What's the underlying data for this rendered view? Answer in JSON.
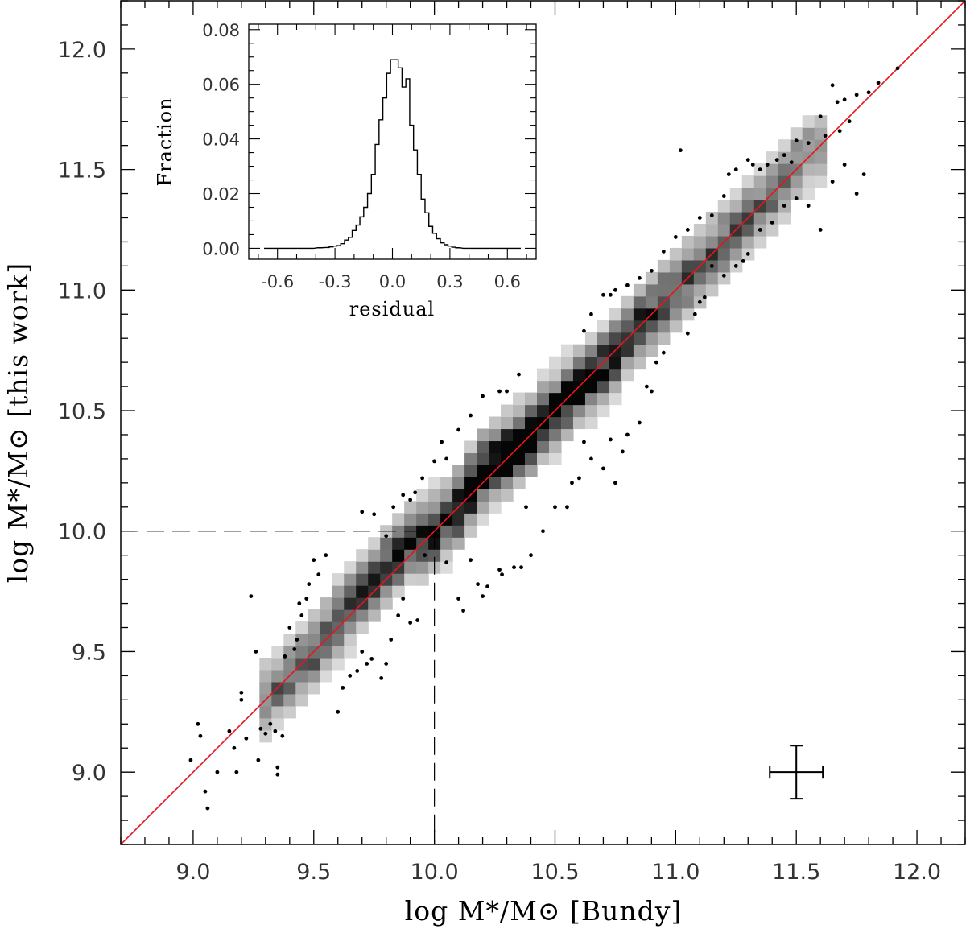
{
  "chart_data": [
    {
      "id": "main",
      "type": "scatter",
      "title": "",
      "xlabel": "log M*/M⊙ [Bundy]",
      "ylabel": "log M*/M⊙ [this work]",
      "xlim": [
        8.7,
        12.2
      ],
      "ylim": [
        8.7,
        12.2
      ],
      "x_ticks": [
        "9.0",
        "9.5",
        "10.0",
        "10.5",
        "11.0",
        "11.5",
        "12.0"
      ],
      "y_ticks": [
        "9.0",
        "9.5",
        "10.0",
        "10.5",
        "11.0",
        "11.5",
        "12.0"
      ],
      "grid": false,
      "one_to_one_line": {
        "from": [
          8.7,
          8.7
        ],
        "to": [
          12.2,
          12.2
        ]
      },
      "reference_lines": {
        "x": 10.0,
        "y": 10.0,
        "style": "dashed"
      },
      "density_histogram": {
        "description": "2D density of galaxies, grey-scale (darker = more)",
        "bin_size": 0.05,
        "ridge": [
          [
            9.3,
            9.3
          ],
          [
            9.5,
            9.5
          ],
          [
            9.7,
            9.75
          ],
          [
            9.9,
            9.95
          ],
          [
            10.0,
            10.0
          ],
          [
            10.1,
            10.1
          ],
          [
            10.2,
            10.25
          ],
          [
            10.3,
            10.32
          ],
          [
            10.4,
            10.4
          ],
          [
            10.5,
            10.5
          ],
          [
            10.6,
            10.6
          ],
          [
            10.7,
            10.68
          ],
          [
            10.8,
            10.8
          ],
          [
            10.9,
            10.9
          ],
          [
            11.0,
            11.0
          ],
          [
            11.1,
            11.1
          ],
          [
            11.2,
            11.2
          ],
          [
            11.3,
            11.3
          ],
          [
            11.4,
            11.4
          ],
          [
            11.5,
            11.52
          ],
          [
            11.6,
            11.62
          ]
        ],
        "scatter_dex": 0.09
      },
      "outlier_points": [
        [
          8.99,
          9.05
        ],
        [
          9.02,
          9.2
        ],
        [
          9.03,
          9.15
        ],
        [
          9.05,
          8.92
        ],
        [
          9.06,
          8.85
        ],
        [
          9.1,
          9.0
        ],
        [
          9.15,
          9.17
        ],
        [
          9.17,
          9.1
        ],
        [
          9.18,
          9.0
        ],
        [
          9.2,
          9.3
        ],
        [
          9.2,
          9.33
        ],
        [
          9.22,
          9.14
        ],
        [
          9.24,
          9.73
        ],
        [
          9.26,
          9.5
        ],
        [
          9.27,
          9.05
        ],
        [
          9.28,
          9.18
        ],
        [
          9.3,
          9.16
        ],
        [
          9.32,
          9.2
        ],
        [
          9.34,
          9.17
        ],
        [
          9.35,
          9.02
        ],
        [
          9.35,
          8.99
        ],
        [
          9.37,
          9.15
        ],
        [
          9.38,
          9.48
        ],
        [
          9.4,
          9.6
        ],
        [
          9.42,
          9.51
        ],
        [
          9.43,
          9.55
        ],
        [
          9.44,
          9.7
        ],
        [
          9.45,
          9.65
        ],
        [
          9.47,
          9.72
        ],
        [
          9.48,
          9.78
        ],
        [
          9.5,
          9.88
        ],
        [
          9.52,
          9.82
        ],
        [
          9.55,
          9.9
        ],
        [
          9.6,
          9.25
        ],
        [
          9.62,
          9.35
        ],
        [
          9.65,
          9.4
        ],
        [
          9.68,
          9.42
        ],
        [
          9.7,
          9.5
        ],
        [
          9.72,
          9.45
        ],
        [
          9.74,
          9.47
        ],
        [
          9.78,
          9.39
        ],
        [
          9.8,
          9.45
        ],
        [
          9.82,
          9.55
        ],
        [
          9.85,
          9.65
        ],
        [
          9.87,
          9.72
        ],
        [
          9.9,
          9.62
        ],
        [
          9.93,
          9.63
        ],
        [
          9.96,
          9.9
        ],
        [
          9.7,
          10.08
        ],
        [
          9.75,
          10.07
        ],
        [
          9.8,
          9.98
        ],
        [
          9.83,
          10.1
        ],
        [
          9.87,
          10.15
        ],
        [
          9.9,
          10.13
        ],
        [
          9.92,
          10.16
        ],
        [
          9.95,
          10.22
        ],
        [
          10.0,
          10.29
        ],
        [
          10.03,
          10.37
        ],
        [
          10.05,
          10.3
        ],
        [
          10.1,
          10.42
        ],
        [
          10.15,
          10.48
        ],
        [
          10.2,
          10.56
        ],
        [
          10.27,
          10.58
        ],
        [
          10.3,
          10.58
        ],
        [
          10.35,
          10.65
        ],
        [
          10.05,
          9.87
        ],
        [
          10.1,
          9.72
        ],
        [
          10.12,
          9.67
        ],
        [
          10.15,
          9.88
        ],
        [
          10.18,
          9.78
        ],
        [
          10.2,
          9.73
        ],
        [
          10.22,
          9.77
        ],
        [
          10.27,
          9.84
        ],
        [
          10.28,
          9.82
        ],
        [
          10.33,
          9.85
        ],
        [
          10.36,
          9.85
        ],
        [
          10.38,
          10.1
        ],
        [
          10.4,
          9.9
        ],
        [
          10.45,
          10.0
        ],
        [
          10.5,
          10.1
        ],
        [
          10.55,
          10.1
        ],
        [
          10.57,
          10.2
        ],
        [
          10.6,
          10.22
        ],
        [
          10.62,
          10.37
        ],
        [
          10.65,
          10.3
        ],
        [
          10.7,
          10.26
        ],
        [
          10.73,
          10.38
        ],
        [
          10.75,
          10.2
        ],
        [
          10.78,
          10.33
        ],
        [
          10.8,
          10.4
        ],
        [
          10.85,
          10.45
        ],
        [
          10.88,
          10.6
        ],
        [
          10.9,
          10.58
        ],
        [
          10.92,
          10.7
        ],
        [
          10.95,
          10.74
        ],
        [
          10.62,
          10.83
        ],
        [
          10.65,
          10.9
        ],
        [
          10.7,
          10.98
        ],
        [
          10.73,
          10.98
        ],
        [
          10.75,
          11.0
        ],
        [
          10.8,
          11.02
        ],
        [
          10.85,
          11.05
        ],
        [
          10.9,
          11.08
        ],
        [
          10.95,
          11.16
        ],
        [
          11.0,
          11.22
        ],
        [
          11.02,
          11.58
        ],
        [
          11.05,
          11.25
        ],
        [
          11.1,
          11.3
        ],
        [
          11.15,
          11.31
        ],
        [
          11.2,
          11.39
        ],
        [
          11.22,
          11.48
        ],
        [
          11.25,
          11.5
        ],
        [
          11.3,
          11.54
        ],
        [
          11.32,
          11.52
        ],
        [
          11.35,
          11.5
        ],
        [
          11.38,
          11.52
        ],
        [
          11.42,
          11.54
        ],
        [
          11.45,
          11.56
        ],
        [
          11.48,
          11.53
        ],
        [
          11.5,
          11.62
        ],
        [
          11.55,
          11.61
        ],
        [
          11.6,
          11.72
        ],
        [
          11.62,
          11.64
        ],
        [
          11.65,
          11.85
        ],
        [
          11.67,
          11.78
        ],
        [
          11.7,
          11.79
        ],
        [
          11.75,
          11.81
        ],
        [
          11.8,
          11.82
        ],
        [
          11.84,
          11.86
        ],
        [
          11.92,
          11.92
        ],
        [
          11.05,
          10.82
        ],
        [
          11.08,
          10.9
        ],
        [
          11.1,
          10.95
        ],
        [
          11.12,
          10.97
        ],
        [
          11.15,
          11.1
        ],
        [
          11.2,
          11.06
        ],
        [
          11.25,
          11.1
        ],
        [
          11.28,
          11.12
        ],
        [
          11.3,
          11.15
        ],
        [
          11.35,
          11.25
        ],
        [
          11.4,
          11.28
        ],
        [
          11.45,
          11.35
        ],
        [
          11.5,
          11.38
        ],
        [
          11.55,
          11.35
        ],
        [
          11.6,
          11.25
        ],
        [
          11.65,
          11.45
        ],
        [
          11.7,
          11.52
        ],
        [
          11.75,
          11.4
        ],
        [
          11.78,
          11.48
        ],
        [
          11.72,
          11.7
        ],
        [
          11.68,
          11.66
        ]
      ],
      "error_bar": {
        "x": 11.5,
        "y": 9.0,
        "x_error": 0.11,
        "y_error": 0.11
      }
    },
    {
      "id": "inset",
      "type": "histogram",
      "title": "",
      "xlabel": "residual",
      "ylabel": "Fraction",
      "xlim": [
        -0.75,
        0.75
      ],
      "ylim": [
        -0.004,
        0.082
      ],
      "x_ticks": [
        "-0.6",
        "-0.3",
        "0.0",
        "0.3",
        "0.6"
      ],
      "y_ticks": [
        "0.00",
        "0.02",
        "0.04",
        "0.06",
        "0.08"
      ],
      "bin_width": 0.02,
      "bins": [
        {
          "x": -0.66,
          "y": 0.0
        },
        {
          "x": -0.62,
          "y": 0.0
        },
        {
          "x": -0.58,
          "y": 0.0
        },
        {
          "x": -0.54,
          "y": 0.0
        },
        {
          "x": -0.5,
          "y": 0.0
        },
        {
          "x": -0.46,
          "y": 0.0
        },
        {
          "x": -0.42,
          "y": 0.0
        },
        {
          "x": -0.38,
          "y": 0.0002
        },
        {
          "x": -0.34,
          "y": 0.0003
        },
        {
          "x": -0.32,
          "y": 0.0005
        },
        {
          "x": -0.3,
          "y": 0.0008
        },
        {
          "x": -0.28,
          "y": 0.001
        },
        {
          "x": -0.26,
          "y": 0.0017
        },
        {
          "x": -0.24,
          "y": 0.003
        },
        {
          "x": -0.22,
          "y": 0.004
        },
        {
          "x": -0.2,
          "y": 0.0065
        },
        {
          "x": -0.18,
          "y": 0.0085
        },
        {
          "x": -0.16,
          "y": 0.0115
        },
        {
          "x": -0.14,
          "y": 0.015
        },
        {
          "x": -0.12,
          "y": 0.02
        },
        {
          "x": -0.1,
          "y": 0.027
        },
        {
          "x": -0.08,
          "y": 0.038
        },
        {
          "x": -0.06,
          "y": 0.047
        },
        {
          "x": -0.04,
          "y": 0.055
        },
        {
          "x": -0.02,
          "y": 0.064
        },
        {
          "x": 0.0,
          "y": 0.069
        },
        {
          "x": 0.02,
          "y": 0.069
        },
        {
          "x": 0.04,
          "y": 0.066
        },
        {
          "x": 0.06,
          "y": 0.059
        },
        {
          "x": 0.08,
          "y": 0.062
        },
        {
          "x": 0.1,
          "y": 0.045
        },
        {
          "x": 0.12,
          "y": 0.036
        },
        {
          "x": 0.14,
          "y": 0.027
        },
        {
          "x": 0.16,
          "y": 0.018
        },
        {
          "x": 0.18,
          "y": 0.013
        },
        {
          "x": 0.2,
          "y": 0.008
        },
        {
          "x": 0.22,
          "y": 0.0055
        },
        {
          "x": 0.24,
          "y": 0.0035
        },
        {
          "x": 0.26,
          "y": 0.002
        },
        {
          "x": 0.28,
          "y": 0.0013
        },
        {
          "x": 0.3,
          "y": 0.0008
        },
        {
          "x": 0.32,
          "y": 0.0004
        },
        {
          "x": 0.34,
          "y": 0.0002
        },
        {
          "x": 0.38,
          "y": 0.0
        },
        {
          "x": 0.42,
          "y": 0.0
        },
        {
          "x": 0.46,
          "y": 0.0
        },
        {
          "x": 0.5,
          "y": 0.0
        },
        {
          "x": 0.54,
          "y": 0.0
        },
        {
          "x": 0.58,
          "y": 0.0
        },
        {
          "x": 0.62,
          "y": 0.0
        },
        {
          "x": 0.66,
          "y": 0.0
        }
      ]
    }
  ],
  "colors": {
    "line": "#e8141c",
    "axis": "#000000",
    "points": "#000000",
    "density_light": "#f1f1f1",
    "density_dark": "#050505"
  }
}
